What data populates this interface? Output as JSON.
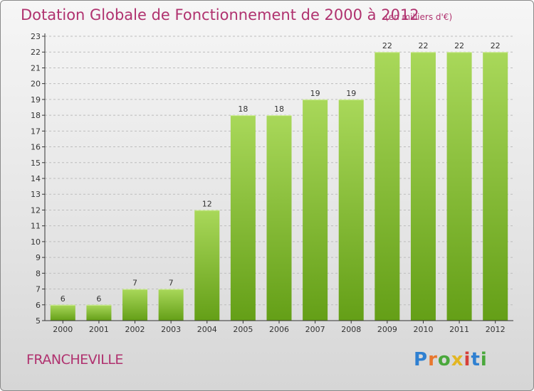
{
  "title": "Dotation Globale de Fonctionnement de 2000 à 2012",
  "subtitle": "(en milliers d'€)",
  "commune": "FRANCHEVILLE",
  "logo": {
    "text": "Proxiti",
    "letters": [
      {
        "char": "P",
        "color": "#2f80d1"
      },
      {
        "char": "r",
        "color": "#e8772e"
      },
      {
        "char": "o",
        "color": "#4aa83c"
      },
      {
        "char": "x",
        "color": "#e2b623"
      },
      {
        "char": "i",
        "color": "#d6403a"
      },
      {
        "char": "t",
        "color": "#2f80d1"
      },
      {
        "char": "i",
        "color": "#4aa83c"
      }
    ]
  },
  "colors": {
    "bar_top": "#a9d85a",
    "bar_bottom": "#649f17",
    "text": "#b0326f",
    "axis": "#333333",
    "grid": "#bdbdbd"
  },
  "chart_data": {
    "type": "bar",
    "categories": [
      "2000",
      "2001",
      "2002",
      "2003",
      "2004",
      "2005",
      "2006",
      "2007",
      "2008",
      "2009",
      "2010",
      "2011",
      "2012"
    ],
    "values": [
      6,
      6,
      7,
      7,
      12,
      18,
      18,
      19,
      19,
      22,
      22,
      22,
      22
    ],
    "ylim": [
      5,
      23
    ],
    "yticks": [
      5,
      6,
      7,
      8,
      9,
      10,
      11,
      12,
      13,
      14,
      15,
      16,
      17,
      18,
      19,
      20,
      21,
      22,
      23
    ],
    "grid": true,
    "title": "Dotation Globale de Fonctionnement de 2000 à 2012",
    "subtitle": "(en milliers d'€)",
    "xlabel": "",
    "ylabel": ""
  }
}
